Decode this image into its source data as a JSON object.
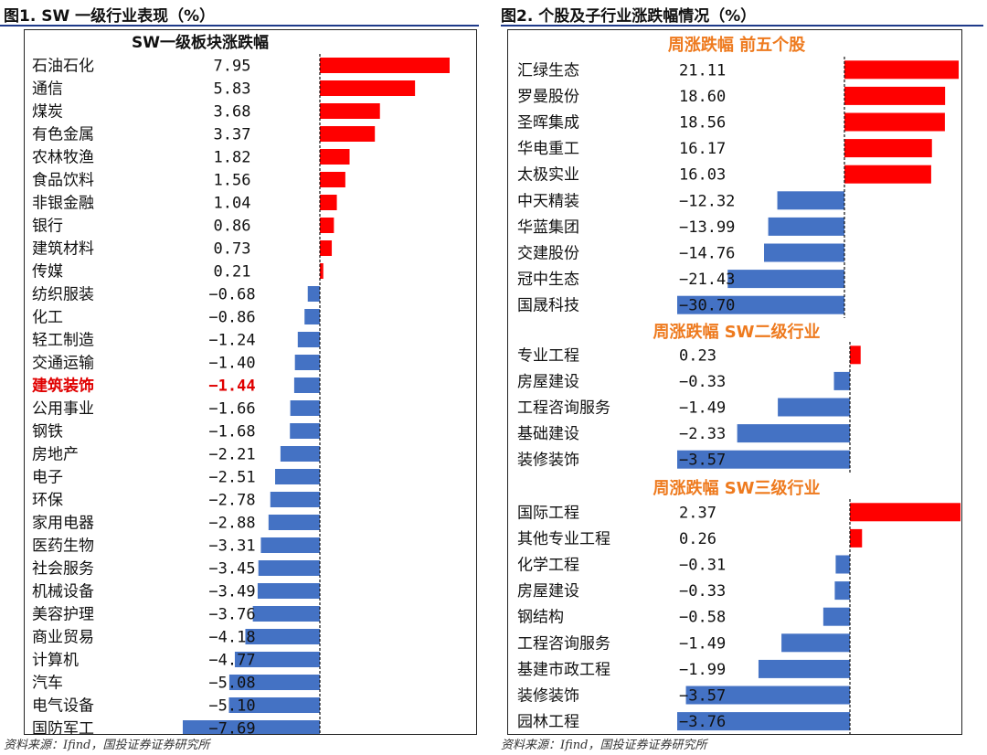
{
  "figure1": {
    "title": "图1. SW 一级行业表现（%）",
    "source": "资料来源：Ifind，国投证券证券研究所"
  },
  "figure2": {
    "title": "图2. 个股及子行业涨跌幅情况（%）",
    "source": "资料来源：Ifind，国投证券证券研究所"
  },
  "colors": {
    "positive": "#ff0000",
    "negative": "#4472c4",
    "highlight_text": "#e00000",
    "section_header": "#ee7a1e"
  },
  "chart_data": [
    {
      "type": "bar",
      "orientation": "horizontal",
      "title": "SW一级板块涨跌幅",
      "categories": [
        "石油石化",
        "通信",
        "煤炭",
        "有色金属",
        "农林牧渔",
        "食品饮料",
        "非银金融",
        "银行",
        "建筑材料",
        "传媒",
        "纺织服装",
        "化工",
        "轻工制造",
        "交通运输",
        "建筑装饰",
        "公用事业",
        "钢铁",
        "房地产",
        "电子",
        "环保",
        "家用电器",
        "医药生物",
        "社会服务",
        "机械设备",
        "美容护理",
        "商业贸易",
        "计算机",
        "汽车",
        "电气设备",
        "国防军工"
      ],
      "values": [
        7.95,
        5.83,
        3.68,
        3.37,
        1.82,
        1.56,
        1.04,
        0.86,
        0.73,
        0.21,
        -0.68,
        -0.86,
        -1.24,
        -1.4,
        -1.44,
        -1.66,
        -1.68,
        -2.21,
        -2.51,
        -2.78,
        -2.88,
        -3.31,
        -3.45,
        -3.49,
        -3.76,
        -4.18,
        -4.77,
        -5.08,
        -5.1,
        -7.69
      ],
      "labels": [
        "7.95",
        "5.83",
        "3.68",
        "3.37",
        "1.82",
        "1.56",
        "1.04",
        "0.86",
        "0.73",
        "0.21",
        "−0.68",
        "−0.86",
        "−1.24",
        "−1.40",
        "−1.44",
        "−1.66",
        "−1.68",
        "−2.21",
        "−2.51",
        "−2.78",
        "−2.88",
        "−3.31",
        "−3.45",
        "−3.49",
        "−3.76",
        "−4.18",
        "−4.77",
        "−5.08",
        "−5.10",
        "−7.69"
      ],
      "highlight": "建筑装饰",
      "xlim": [
        -7.69,
        7.95
      ]
    },
    {
      "type": "bar",
      "orientation": "horizontal",
      "sections": [
        {
          "title": "周涨跌幅 前五个股",
          "categories": [
            "汇绿生态",
            "罗曼股份",
            "圣晖集成",
            "华电重工",
            "太极实业",
            "中天精装",
            "华蓝集团",
            "交建股份",
            "冠中生态",
            "国晟科技"
          ],
          "values": [
            21.11,
            18.6,
            18.56,
            16.17,
            16.03,
            -12.32,
            -13.99,
            -14.76,
            -21.43,
            -30.7
          ],
          "labels": [
            "21.11",
            "18.60",
            "18.56",
            "16.17",
            "16.03",
            "−12.32",
            "−13.99",
            "−14.76",
            "−21.43",
            "−30.70"
          ],
          "xlim": [
            -30.7,
            21.11
          ]
        },
        {
          "title": "周涨跌幅 SW二级行业",
          "categories": [
            "专业工程",
            "房屋建设",
            "工程咨询服务",
            "基础建设",
            "装修装饰"
          ],
          "values": [
            0.23,
            -0.33,
            -1.49,
            -2.33,
            -3.57
          ],
          "labels": [
            "0.23",
            "−0.33",
            "−1.49",
            "−2.33",
            "−3.57"
          ],
          "xlim": [
            -3.57,
            2.37
          ]
        },
        {
          "title": "周涨跌幅 SW三级行业",
          "categories": [
            "国际工程",
            "其他专业工程",
            "化学工程",
            "房屋建设",
            "钢结构",
            "工程咨询服务",
            "基建市政工程",
            "装修装饰",
            "园林工程"
          ],
          "values": [
            2.37,
            0.26,
            -0.31,
            -0.33,
            -0.58,
            -1.49,
            -1.99,
            -3.57,
            -3.76
          ],
          "labels": [
            "2.37",
            "0.26",
            "−0.31",
            "−0.33",
            "−0.58",
            "−1.49",
            "−1.99",
            "−3.57",
            "−3.76"
          ],
          "xlim": [
            -3.76,
            2.37
          ]
        }
      ]
    }
  ]
}
